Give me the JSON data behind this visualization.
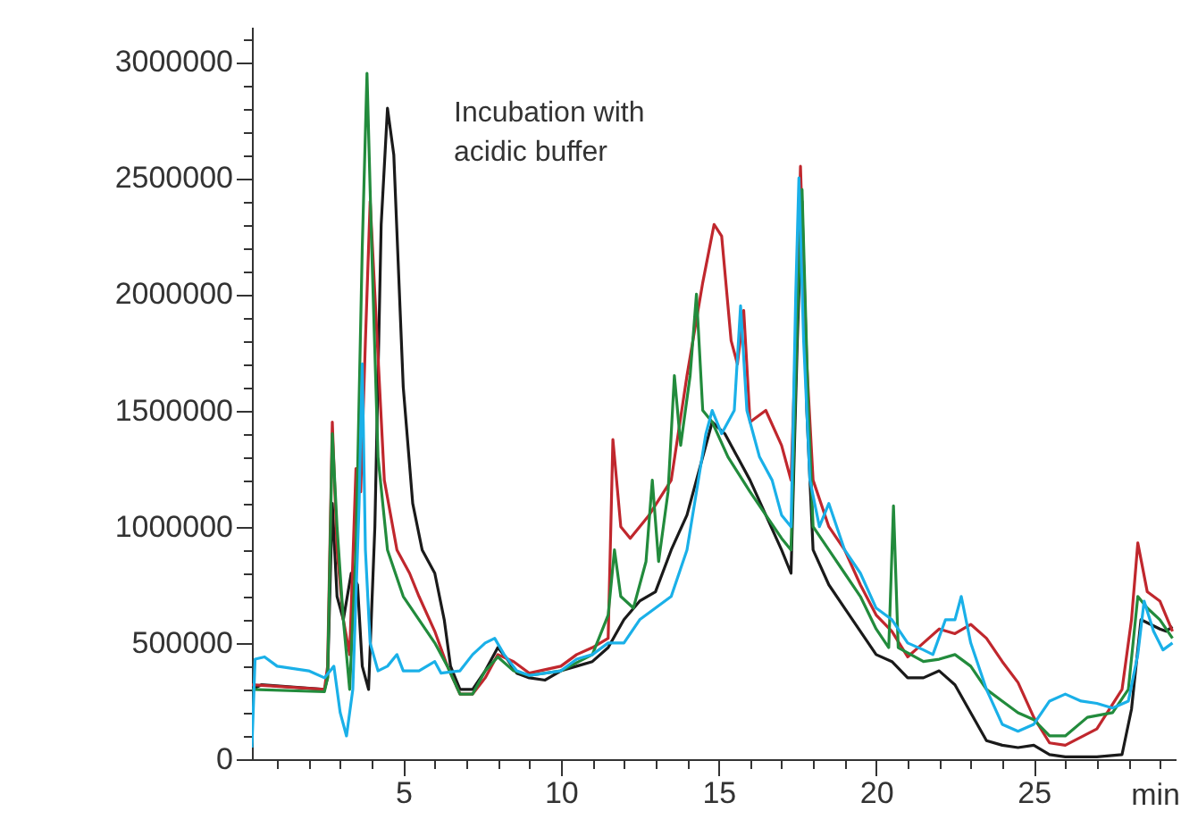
{
  "chart_data": {
    "type": "line",
    "xlabel": "min",
    "annotations": [
      "Incubation with\nacidic buffer"
    ],
    "xlim": [
      0.2,
      29.5
    ],
    "ylim": [
      0,
      3150000
    ],
    "xticks": [
      {
        "value": 1,
        "label": null
      },
      {
        "value": 2,
        "label": null
      },
      {
        "value": 3,
        "label": null
      },
      {
        "value": 4,
        "label": null
      },
      5,
      {
        "value": 6,
        "label": null
      },
      {
        "value": 7,
        "label": null
      },
      {
        "value": 8,
        "label": null
      },
      {
        "value": 9,
        "label": null
      },
      10,
      {
        "value": 11,
        "label": null
      },
      {
        "value": 12,
        "label": null
      },
      {
        "value": 13,
        "label": null
      },
      {
        "value": 14,
        "label": null
      },
      15,
      {
        "value": 16,
        "label": null
      },
      {
        "value": 17,
        "label": null
      },
      {
        "value": 18,
        "label": null
      },
      {
        "value": 19,
        "label": null
      },
      20,
      {
        "value": 21,
        "label": null
      },
      {
        "value": 22,
        "label": null
      },
      {
        "value": 23,
        "label": null
      },
      {
        "value": 24,
        "label": null
      },
      25,
      {
        "value": 26,
        "label": null
      },
      {
        "value": 27,
        "label": null
      },
      {
        "value": 28,
        "label": null
      },
      {
        "value": 29,
        "label": null
      }
    ],
    "yticks": [
      0,
      {
        "value": 100000,
        "label": null
      },
      {
        "value": 200000,
        "label": null
      },
      {
        "value": 300000,
        "label": null
      },
      {
        "value": 400000,
        "label": null
      },
      500000,
      {
        "value": 600000,
        "label": null
      },
      {
        "value": 700000,
        "label": null
      },
      {
        "value": 800000,
        "label": null
      },
      {
        "value": 900000,
        "label": null
      },
      1000000,
      {
        "value": 1100000,
        "label": null
      },
      {
        "value": 1200000,
        "label": null
      },
      {
        "value": 1300000,
        "label": null
      },
      {
        "value": 1400000,
        "label": null
      },
      1500000,
      {
        "value": 1600000,
        "label": null
      },
      {
        "value": 1700000,
        "label": null
      },
      {
        "value": 1800000,
        "label": null
      },
      {
        "value": 1900000,
        "label": null
      },
      2000000,
      {
        "value": 2100000,
        "label": null
      },
      {
        "value": 2200000,
        "label": null
      },
      {
        "value": 2300000,
        "label": null
      },
      {
        "value": 2400000,
        "label": null
      },
      2500000,
      {
        "value": 2600000,
        "label": null
      },
      {
        "value": 2700000,
        "label": null
      },
      {
        "value": 2800000,
        "label": null
      },
      {
        "value": 2900000,
        "label": null
      },
      3000000,
      {
        "value": 3100000,
        "label": null
      }
    ],
    "series": [
      {
        "color": "#1a1a1a",
        "x": [
          0.2,
          0.5,
          2.5,
          2.6,
          2.75,
          2.9,
          3.1,
          3.35,
          3.55,
          3.7,
          3.9,
          4.1,
          4.3,
          4.5,
          4.7,
          5.0,
          5.3,
          5.6,
          6.0,
          6.3,
          6.5,
          6.8,
          7.2,
          7.6,
          8.0,
          8.3,
          8.6,
          9.0,
          9.5,
          10,
          10.5,
          11,
          11.5,
          12,
          12.5,
          13,
          13.5,
          14,
          14.5,
          14.8,
          15.2,
          15.6,
          16,
          16.5,
          17,
          17.3,
          17.5,
          17.65,
          17.8,
          18,
          18.5,
          19,
          19.5,
          20,
          20.5,
          21,
          21.5,
          22,
          22.5,
          23,
          23.5,
          24,
          24.5,
          25,
          25.5,
          26,
          27,
          27.8,
          28.1,
          28.4,
          28.7,
          29.0,
          29.2,
          29.4
        ],
        "values": [
          300000,
          320000,
          300000,
          350000,
          1100000,
          700000,
          600000,
          800000,
          750000,
          400000,
          300000,
          1000000,
          2300000,
          2800000,
          2600000,
          1600000,
          1100000,
          900000,
          800000,
          600000,
          400000,
          300000,
          300000,
          380000,
          480000,
          430000,
          370000,
          350000,
          340000,
          380000,
          400000,
          420000,
          480000,
          600000,
          680000,
          720000,
          900000,
          1050000,
          1300000,
          1450000,
          1400000,
          1300000,
          1200000,
          1050000,
          900000,
          800000,
          1800000,
          2400000,
          1500000,
          900000,
          750000,
          650000,
          550000,
          450000,
          420000,
          350000,
          350000,
          380000,
          320000,
          200000,
          80000,
          60000,
          50000,
          60000,
          20000,
          10000,
          10000,
          20000,
          215000,
          600000,
          580000,
          560000,
          550000,
          570000
        ]
      },
      {
        "color": "#c0272d",
        "x": [
          0.2,
          2.5,
          2.6,
          2.75,
          2.9,
          3.1,
          3.3,
          3.5,
          3.65,
          3.8,
          3.95,
          4.1,
          4.4,
          4.8,
          5.2,
          5.5,
          6.0,
          6.4,
          6.8,
          7.2,
          7.6,
          8.0,
          8.5,
          9,
          10,
          10.5,
          11,
          11.5,
          11.65,
          11.9,
          12.2,
          12.8,
          13.5,
          14,
          14.5,
          14.86,
          15.1,
          15.4,
          15.6,
          15.8,
          16,
          16.5,
          17,
          17.3,
          17.5,
          17.6,
          17.8,
          18,
          18.5,
          19,
          19.5,
          20,
          20.5,
          21,
          21.5,
          22,
          22.5,
          23,
          23.5,
          24,
          24.5,
          25,
          25.5,
          26,
          27,
          27.8,
          28.1,
          28.3,
          28.6,
          29,
          29.4
        ],
        "values": [
          320000,
          300000,
          400000,
          1450000,
          900000,
          600000,
          450000,
          1250000,
          1150000,
          1800000,
          2400000,
          2000000,
          1200000,
          900000,
          800000,
          700000,
          550000,
          400000,
          280000,
          280000,
          350000,
          450000,
          420000,
          370000,
          400000,
          450000,
          480000,
          520000,
          1375000,
          1000000,
          950000,
          1050000,
          1200000,
          1650000,
          2050000,
          2300000,
          2250000,
          1800000,
          1700000,
          1930000,
          1450000,
          1500000,
          1350000,
          1200000,
          2000000,
          2550000,
          1700000,
          1200000,
          1000000,
          900000,
          750000,
          620000,
          550000,
          440000,
          500000,
          560000,
          540000,
          580000,
          520000,
          420000,
          330000,
          180000,
          70000,
          60000,
          130000,
          300000,
          600000,
          930000,
          720000,
          680000,
          550000
        ]
      },
      {
        "color": "#228b3c",
        "x": [
          0.2,
          2.5,
          2.6,
          2.75,
          2.9,
          3.1,
          3.3,
          3.5,
          3.7,
          3.85,
          4.0,
          4.2,
          4.5,
          5,
          5.5,
          6,
          6.4,
          6.8,
          7.2,
          7.6,
          8,
          8.5,
          9,
          10,
          11,
          11.5,
          11.7,
          11.9,
          12.3,
          12.7,
          12.9,
          13.1,
          13.4,
          13.6,
          13.8,
          14.1,
          14.3,
          14.5,
          14.8,
          15.3,
          16,
          16.5,
          17,
          17.3,
          17.5,
          17.65,
          17.85,
          18,
          18.5,
          19,
          19.5,
          20,
          20.4,
          20.55,
          20.7,
          21.1,
          21.5,
          22,
          22.5,
          23,
          23.5,
          24,
          24.5,
          25,
          25.5,
          26,
          26.7,
          27.5,
          28,
          28.3,
          28.6,
          29,
          29.4
        ],
        "values": [
          300000,
          290000,
          350000,
          1400000,
          1000000,
          600000,
          300000,
          900000,
          2200000,
          2950000,
          2200000,
          1300000,
          900000,
          700000,
          600000,
          500000,
          400000,
          280000,
          280000,
          380000,
          440000,
          380000,
          360000,
          380000,
          450000,
          620000,
          900000,
          700000,
          650000,
          850000,
          1200000,
          850000,
          1150000,
          1650000,
          1350000,
          1650000,
          2000000,
          1500000,
          1450000,
          1300000,
          1150000,
          1050000,
          950000,
          900000,
          1900000,
          2450000,
          1500000,
          1000000,
          900000,
          800000,
          700000,
          560000,
          480000,
          1090000,
          480000,
          450000,
          420000,
          430000,
          450000,
          400000,
          300000,
          250000,
          200000,
          170000,
          100000,
          100000,
          180000,
          200000,
          300000,
          700000,
          650000,
          600000,
          520000
        ]
      },
      {
        "color": "#1ab0e8",
        "x": [
          0.2,
          0.3,
          0.6,
          1,
          2,
          2.5,
          2.8,
          3.0,
          3.2,
          3.4,
          3.6,
          3.7,
          3.8,
          3.95,
          4.2,
          4.5,
          4.8,
          5.0,
          5.5,
          6,
          6.2,
          6.8,
          7.2,
          7.6,
          7.9,
          8.2,
          8.6,
          9,
          10,
          10.5,
          11,
          11.5,
          12,
          12.5,
          13,
          13.5,
          14,
          14.3,
          14.6,
          14.8,
          15.1,
          15.5,
          15.7,
          15.9,
          16.3,
          16.7,
          17,
          17.3,
          17.45,
          17.55,
          17.7,
          17.9,
          18.2,
          18.5,
          19,
          19.5,
          20,
          20.5,
          21,
          21.5,
          21.8,
          22.2,
          22.5,
          22.7,
          23,
          23.5,
          24,
          24.5,
          25,
          25.5,
          26,
          26.5,
          27,
          27.5,
          28,
          28.3,
          28.5,
          28.8,
          29.1,
          29.4
        ],
        "values": [
          50000,
          430000,
          440000,
          400000,
          380000,
          350000,
          400000,
          200000,
          100000,
          300000,
          1100000,
          1700000,
          900000,
          500000,
          380000,
          400000,
          450000,
          380000,
          380000,
          420000,
          370000,
          380000,
          450000,
          500000,
          520000,
          450000,
          380000,
          360000,
          380000,
          430000,
          450000,
          500000,
          500000,
          600000,
          650000,
          700000,
          900000,
          1150000,
          1400000,
          1500000,
          1400000,
          1500000,
          1950000,
          1500000,
          1300000,
          1200000,
          1050000,
          1000000,
          2000000,
          2500000,
          1800000,
          1200000,
          1000000,
          1100000,
          900000,
          800000,
          650000,
          600000,
          500000,
          470000,
          450000,
          600000,
          600000,
          700000,
          500000,
          300000,
          150000,
          120000,
          150000,
          250000,
          280000,
          250000,
          240000,
          220000,
          250000,
          450000,
          680000,
          550000,
          470000,
          500000
        ]
      }
    ]
  }
}
